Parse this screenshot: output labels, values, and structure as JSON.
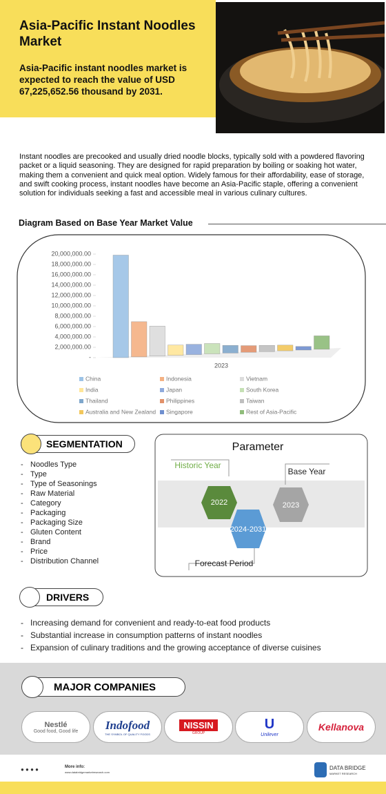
{
  "header": {
    "title": "Asia-Pacific Instant Noodles Market",
    "subtitle": "Asia-Pacific instant noodles market is expected to reach the value of USD 67,225,652.56  thousand by 2031."
  },
  "description": "Instant noodles are precooked and usually dried noodle blocks, typically sold with a powdered flavoring packet or a liquid seasoning. They are designed for rapid preparation by boiling or soaking hot water, making them a convenient and quick meal option. Widely famous for their affordability, ease of storage, and swift cooking process, instant noodles have become an Asia-Pacific staple, offering a convenient solution for individuals seeking a fast and accessible meal in various culinary cultures.",
  "chart_data": {
    "type": "bar",
    "title": "Diagram Based on Base Year Market Value",
    "categories": [
      "2023"
    ],
    "ylim": [
      0,
      20000000
    ],
    "yticks": [
      {
        "value": 0,
        "label": "-"
      },
      {
        "value": 2000000,
        "label": "2,000,000.00"
      },
      {
        "value": 4000000,
        "label": "4,000,000.00"
      },
      {
        "value": 6000000,
        "label": "6,000,000.00"
      },
      {
        "value": 8000000,
        "label": "8,000,000.00"
      },
      {
        "value": 10000000,
        "label": "10,000,000.00"
      },
      {
        "value": 12000000,
        "label": "12,000,000.00"
      },
      {
        "value": 14000000,
        "label": "14,000,000.00"
      },
      {
        "value": 16000000,
        "label": "16,000,000.00"
      },
      {
        "value": 18000000,
        "label": "18,000,000.00"
      },
      {
        "value": 20000000,
        "label": "20,000,000.00"
      }
    ],
    "series": [
      {
        "name": "China",
        "color": "#9dc3e6",
        "values": [
          19800000
        ]
      },
      {
        "name": "Indonesia",
        "color": "#f4b183",
        "values": [
          6800000
        ]
      },
      {
        "name": "Vietnam",
        "color": "#dcdcdc",
        "values": [
          5800000
        ]
      },
      {
        "name": "India",
        "color": "#ffe699",
        "values": [
          2000000
        ]
      },
      {
        "name": "Japan",
        "color": "#8faadc",
        "values": [
          2000000
        ]
      },
      {
        "name": "South Korea",
        "color": "#c5e0b4",
        "values": [
          2000000
        ]
      },
      {
        "name": "Thailand",
        "color": "#7fa7cc",
        "values": [
          1500000
        ]
      },
      {
        "name": "Philippines",
        "color": "#e2916a",
        "values": [
          1300000
        ]
      },
      {
        "name": "Taiwan",
        "color": "#bfbfbf",
        "values": [
          1200000
        ]
      },
      {
        "name": "Australia and New Zealand",
        "color": "#f2c75c",
        "values": [
          1100000
        ]
      },
      {
        "name": "Singapore",
        "color": "#6f8fcf",
        "values": [
          700000
        ]
      },
      {
        "name": "Rest of Asia-Pacific",
        "color": "#8fbc7a",
        "values": [
          2600000
        ]
      }
    ]
  },
  "segmentation": {
    "title": "SEGMENTATION",
    "items": [
      "Noodles Type",
      "Type",
      "Type of Seasonings",
      "Raw Material",
      "Category",
      "Packaging",
      "Packaging Size",
      "Gluten Content",
      "Brand",
      "Price",
      "Distribution Channel"
    ]
  },
  "parameter": {
    "title": "Parameter",
    "historic_label": "Historic Year",
    "historic_year": "2022",
    "base_label": "Base Year",
    "base_year": "2023",
    "forecast_label": "Forecast Period",
    "forecast_period": "2024-2031"
  },
  "drivers": {
    "title": "DRIVERS",
    "items": [
      "Increasing demand for convenient and ready-to-eat food products",
      "Substantial increase in consumption patterns of instant noodles",
      "Expansion of culinary traditions and the growing acceptance of diverse cuisines"
    ]
  },
  "companies": {
    "title": "MAJOR COMPANIES",
    "nestle": "Nestlé",
    "nestle_tag": "Good food, Good life",
    "indofood": "Indofood",
    "indofood_tag": "THE SYMBOL OF QUALITY FOODS",
    "nissin": "NISSIN",
    "nissin_tag": "GROUP",
    "unilever": "Unilever",
    "kellanova": "Kellanova"
  },
  "footer": {
    "more_info": "More info:",
    "url": "www.databridgemarketresearch.com",
    "brand": "DATA BRIDGE",
    "brand_tag": "MARKET RESEARCH"
  }
}
